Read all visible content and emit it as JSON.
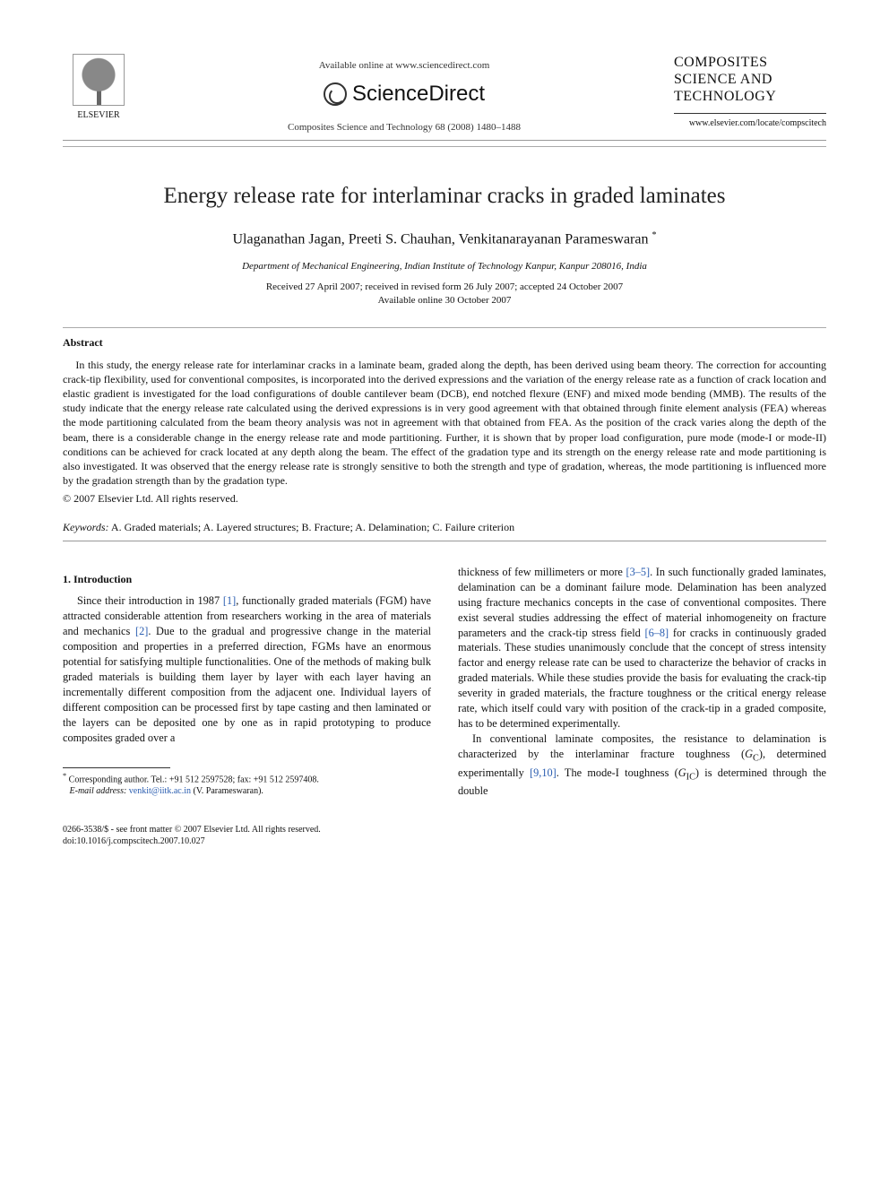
{
  "header": {
    "publisher_label": "ELSEVIER",
    "available_online": "Available online at www.sciencedirect.com",
    "sciencedirect_label": "ScienceDirect",
    "journal_ref": "Composites Science and Technology 68 (2008) 1480–1488",
    "journal_box_line1": "COMPOSITES",
    "journal_box_line2": "SCIENCE AND",
    "journal_box_line3": "TECHNOLOGY",
    "journal_url": "www.elsevier.com/locate/compscitech"
  },
  "article": {
    "title": "Energy release rate for interlaminar cracks in graded laminates",
    "authors": "Ulaganathan Jagan, Preeti S. Chauhan, Venkitanarayanan Parameswaran",
    "corr_mark": "*",
    "affiliation": "Department of Mechanical Engineering, Indian Institute of Technology Kanpur, Kanpur 208016, India",
    "dates_line1": "Received 27 April 2007; received in revised form 26 July 2007; accepted 24 October 2007",
    "dates_line2": "Available online 30 October 2007"
  },
  "abstract": {
    "heading": "Abstract",
    "body": "In this study, the energy release rate for interlaminar cracks in a laminate beam, graded along the depth, has been derived using beam theory. The correction for accounting crack-tip flexibility, used for conventional composites, is incorporated into the derived expressions and the variation of the energy release rate as a function of crack location and elastic gradient is investigated for the load configurations of double cantilever beam (DCB), end notched flexure (ENF) and mixed mode bending (MMB). The results of the study indicate that the energy release rate calculated using the derived expressions is in very good agreement with that obtained through finite element analysis (FEA) whereas the mode partitioning calculated from the beam theory analysis was not in agreement with that obtained from FEA. As the position of the crack varies along the depth of the beam, there is a considerable change in the energy release rate and mode partitioning. Further, it is shown that by proper load configuration, pure mode (mode-I or mode-II) conditions can be achieved for crack located at any depth along the beam. The effect of the gradation type and its strength on the energy release rate and mode partitioning is also investigated. It was observed that the energy release rate is strongly sensitive to both the strength and type of gradation, whereas, the mode partitioning is influenced more by the gradation strength than by the gradation type.",
    "copyright": "© 2007 Elsevier Ltd. All rights reserved."
  },
  "keywords": {
    "label": "Keywords:",
    "value": "A. Graded materials; A. Layered structures; B. Fracture; A. Delamination; C. Failure criterion"
  },
  "sections": {
    "intro_heading": "1. Introduction",
    "col1_p1_a": "Since their introduction in 1987 ",
    "ref1": "[1]",
    "col1_p1_b": ", functionally graded materials (FGM) have attracted considerable attention from researchers working in the area of materials and mechanics ",
    "ref2": "[2]",
    "col1_p1_c": ". Due to the gradual and progressive change in the material composition and properties in a preferred direction, FGMs have an enormous potential for satisfying multiple functionalities. One of the methods of making bulk graded materials is building them layer by layer with each layer having an incrementally different composition from the adjacent one. Individual layers of different composition can be processed first by tape casting and then laminated or the layers can be deposited one by one as in rapid prototyping to produce composites graded over a",
    "col2_p1_a": "thickness of few millimeters or more ",
    "ref35": "[3–5]",
    "col2_p1_b": ". In such functionally graded laminates, delamination can be a dominant failure mode. Delamination has been analyzed using fracture mechanics concepts in the case of conventional composites. There exist several studies addressing the effect of material inhomogeneity on fracture parameters and the crack-tip stress field ",
    "ref68": "[6–8]",
    "col2_p1_c": " for cracks in continuously graded materials. These studies unanimously conclude that the concept of stress intensity factor and energy release rate can be used to characterize the behavior of cracks in graded materials. While these studies provide the basis for evaluating the crack-tip severity in graded materials, the fracture toughness or the critical energy release rate, which itself could vary with position of the crack-tip in a graded composite, has to be determined experimentally.",
    "col2_p2_a": "In conventional laminate composites, the resistance to delamination is characterized by the interlaminar fracture toughness (",
    "gc": "G",
    "gc_sub": "C",
    "col2_p2_b": "), determined experimentally ",
    "ref910": "[9,10]",
    "col2_p2_c": ". The mode-I toughness (",
    "gic": "G",
    "gic_sub": "IC",
    "col2_p2_d": ") is determined through the double"
  },
  "footnote": {
    "corr_line": "Corresponding author. Tel.: +91 512 2597528; fax: +91 512 2597408.",
    "email_label": "E-mail address:",
    "email": "venkit@iitk.ac.in",
    "email_person": "(V. Parameswaran)."
  },
  "footer": {
    "issn_line": "0266-3538/$ - see front matter © 2007 Elsevier Ltd. All rights reserved.",
    "doi": "doi:10.1016/j.compscitech.2007.10.027"
  },
  "colors": {
    "link": "#2a5db0",
    "text": "#111111",
    "rule": "#999999"
  }
}
